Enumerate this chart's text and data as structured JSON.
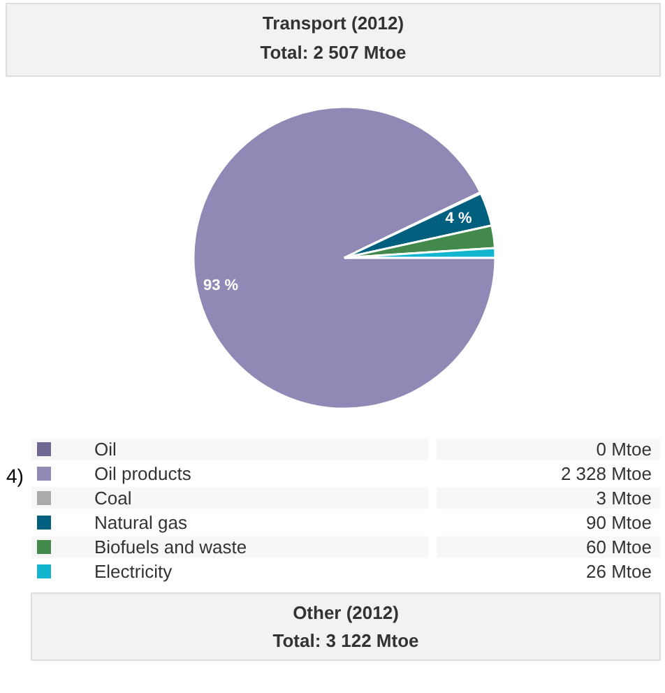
{
  "chart_data": {
    "type": "pie",
    "title": "Transport (2012)",
    "subtitle": "Total: 2 507 Mtoe",
    "categories": [
      "Oil",
      "Oil products",
      "Coal",
      "Natural gas",
      "Biofuels and waste",
      "Electricity"
    ],
    "values": [
      0,
      2328,
      3,
      90,
      60,
      26
    ],
    "colors": [
      "#6f6691",
      "#9189b5",
      "#aaaaaa",
      "#005f7f",
      "#43894b",
      "#11b5d0"
    ],
    "value_labels": [
      "0 Mtoe",
      "2 328 Mtoe",
      "3 Mtoe",
      "90 Mtoe",
      "60 Mtoe",
      "26 Mtoe"
    ],
    "annotations": [
      {
        "text": "93 %",
        "x": "Oil products"
      },
      {
        "text": "4 %",
        "x": "Natural gas"
      },
      "4)",
      "Other (2012)",
      "Total: 3 122 Mtoe"
    ],
    "legend": "bottom"
  }
}
